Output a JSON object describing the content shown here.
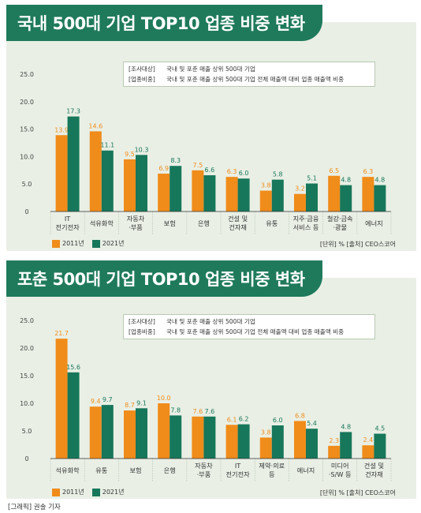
{
  "colors": {
    "y2011": "#f08c1a",
    "y2021": "#17775a",
    "title_bg": "#1f7a5c",
    "panel_bg": "#e9efe5"
  },
  "credit": "[그래픽] 권솔 기자",
  "chart_data": [
    {
      "type": "bar",
      "title": "국내 500대 기업 TOP10 업종 비중 변화",
      "info": [
        {
          "key": "[조사대상]",
          "value": "국내 및 포춘 매출 상위 500대 기업"
        },
        {
          "key": "[업종비중]",
          "value": "국내 및 포춘 매출 상위 500대 기업 전체 매출액 대비 업종 매출액 비중"
        }
      ],
      "ylim": [
        0,
        25
      ],
      "yticks": [
        "0",
        "5.0",
        "10.0",
        "15.0",
        "20.0",
        "25.0"
      ],
      "categories": [
        [
          "IT",
          "전기전자"
        ],
        [
          "석유화학"
        ],
        [
          "자동차",
          "·부품"
        ],
        [
          "보험"
        ],
        [
          "은행"
        ],
        [
          "건설 및",
          "건자재"
        ],
        [
          "유통"
        ],
        [
          "지주·금융",
          "서비스 등"
        ],
        [
          "철강·금속",
          "·광물"
        ],
        [
          "에너지"
        ]
      ],
      "series": [
        {
          "name": "2011년",
          "values": [
            13.9,
            14.6,
            9.5,
            6.9,
            7.5,
            6.3,
            3.8,
            3.2,
            6.5,
            6.3
          ],
          "labels": [
            "13.9",
            "14.6",
            "9.5",
            "6.9",
            "7.5",
            "6.3",
            "3.8",
            "3.2",
            "6.5",
            "6.3"
          ]
        },
        {
          "name": "2021년",
          "values": [
            17.3,
            11.1,
            10.3,
            8.3,
            6.6,
            6.0,
            5.8,
            5.1,
            4.8,
            4.8
          ],
          "labels": [
            "17.3",
            "11.1",
            "10.3",
            "8.3",
            "6.6",
            "6.0",
            "5.8",
            "5.1",
            "4.8",
            "4.8"
          ]
        }
      ],
      "source": "[단위] %  [출처] CEO스코어"
    },
    {
      "type": "bar",
      "title": "포춘 500대 기업 TOP10 업종 비중 변화",
      "info": [
        {
          "key": "[조사대상]",
          "value": "국내 및 포춘 매출 상위 500대 기업"
        },
        {
          "key": "[업종비중]",
          "value": "국내 및 포춘 매출 상위 500대 기업 전체 매출액 대비 업종 매출액 비중"
        }
      ],
      "ylim": [
        0,
        25
      ],
      "yticks": [
        "0",
        "5.0",
        "10.0",
        "15.0",
        "20.0",
        "25.0"
      ],
      "categories": [
        [
          "석유화학"
        ],
        [
          "유통"
        ],
        [
          "보험"
        ],
        [
          "은행"
        ],
        [
          "자동차",
          "·부품"
        ],
        [
          "IT",
          "전기전자"
        ],
        [
          "제약·의료",
          "등"
        ],
        [
          "에너지"
        ],
        [
          "미디어",
          "·S/W 등"
        ],
        [
          "건설 및",
          "건자재"
        ]
      ],
      "series": [
        {
          "name": "2011년",
          "values": [
            21.7,
            9.4,
            8.7,
            10.0,
            7.6,
            6.1,
            3.8,
            6.8,
            2.3,
            2.4
          ],
          "labels": [
            "21.7",
            "9.4",
            "8.7",
            "10.0",
            "7.6",
            "6.1",
            "3.8",
            "6.8",
            "2.3",
            "2.4"
          ]
        },
        {
          "name": "2021년",
          "values": [
            15.6,
            9.7,
            9.1,
            7.8,
            7.6,
            6.2,
            6.0,
            5.4,
            4.8,
            4.5
          ],
          "labels": [
            "15.6",
            "9.7",
            "9.1",
            "7.8",
            "7.6",
            "6.2",
            "6.0",
            "5.4",
            "4.8",
            "4.5"
          ]
        }
      ],
      "source": "[단위] %  [출처] CEO스코어"
    }
  ]
}
